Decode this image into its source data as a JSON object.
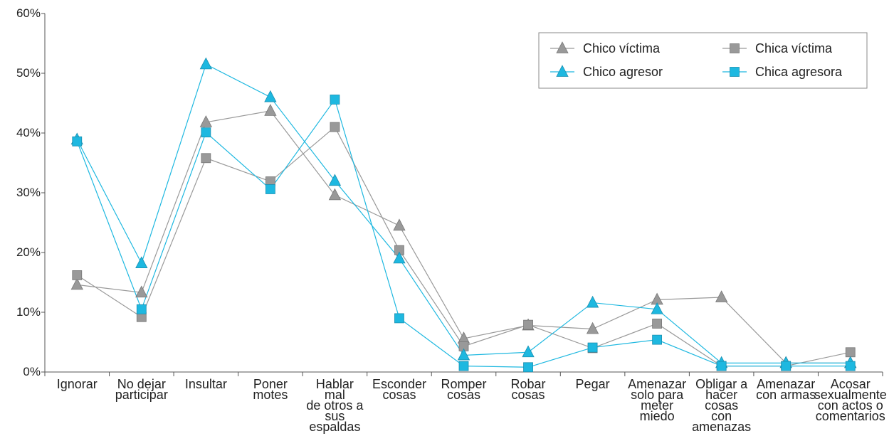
{
  "chart_data": {
    "type": "line",
    "title": "",
    "xlabel": "",
    "ylabel": "",
    "ylim": [
      0,
      60
    ],
    "yticks": [
      "0%",
      "10%",
      "20%",
      "30%",
      "40%",
      "50%",
      "60%"
    ],
    "grid": false,
    "legend_position": "top-right",
    "categories": [
      [
        "Ignorar"
      ],
      [
        "No dejar",
        "participar"
      ],
      [
        "Insultar"
      ],
      [
        "Poner",
        "motes"
      ],
      [
        "Hablar",
        "mal",
        "de otros a",
        "sus",
        "espaldas"
      ],
      [
        "Esconder",
        "cosas"
      ],
      [
        "Romper",
        "cosas"
      ],
      [
        "Robar",
        "cosas"
      ],
      [
        "Pegar"
      ],
      [
        "Amenazar",
        "solo para",
        "meter",
        "miedo"
      ],
      [
        "Obligar a",
        "hacer",
        "cosas",
        "con",
        "amenazas"
      ],
      [
        "Amenazar",
        "con armas"
      ],
      [
        "Acosar",
        "sexualmente",
        "con actos o",
        "comentarios"
      ]
    ],
    "series": [
      {
        "name": "Chico víctima",
        "marker": "triangle",
        "color": "#999999",
        "values": [
          14.6,
          13.3,
          41.8,
          43.7,
          29.6,
          24.5,
          5.6,
          7.8,
          7.2,
          12.1,
          12.5,
          1.5,
          1.5
        ]
      },
      {
        "name": "Chica víctima",
        "marker": "square",
        "color": "#999999",
        "values": [
          16.2,
          9.2,
          35.8,
          31.9,
          41.0,
          20.4,
          4.3,
          7.9,
          4.0,
          8.1,
          1.0,
          1.0,
          3.3
        ]
      },
      {
        "name": "Chico agresor",
        "marker": "triangle",
        "color": "#1eb8e0",
        "values": [
          38.9,
          18.2,
          51.5,
          46.0,
          32.0,
          19.0,
          2.8,
          3.3,
          11.6,
          10.5,
          1.5,
          1.5,
          1.5
        ]
      },
      {
        "name": "Chica agresora",
        "marker": "square",
        "color": "#1eb8e0",
        "values": [
          38.6,
          10.5,
          40.1,
          30.6,
          45.6,
          9.0,
          1.0,
          0.8,
          4.1,
          5.4,
          1.0,
          1.0,
          1.0
        ]
      }
    ]
  }
}
